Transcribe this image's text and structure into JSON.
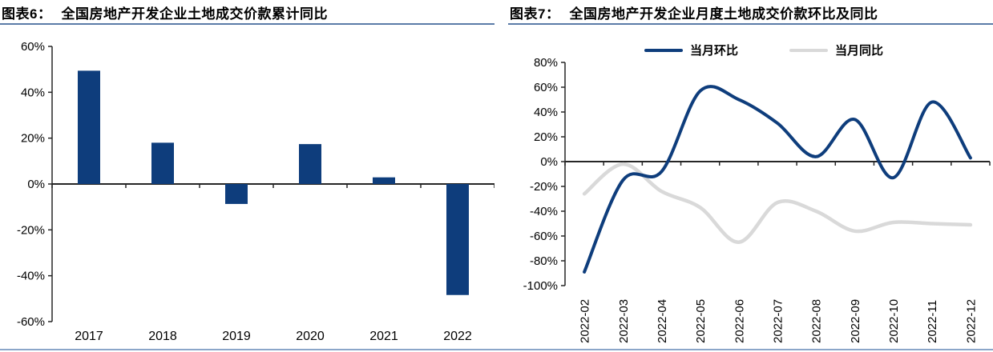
{
  "panels": {
    "left": {
      "label": "图表6：",
      "title": "全国房地产开发企业土地成交价款累计同比"
    },
    "right": {
      "label": "图表7：",
      "title": "全国房地产开发企业月度土地成交价款环比及同比"
    }
  },
  "colors": {
    "navy": "#0e3d7c",
    "gray_line": "#d9d9d9",
    "title_underline": "#5b7ca8",
    "bottom_rule": "#8ba6c9",
    "axis": "#262626",
    "text": "#000000"
  },
  "chart_data": [
    {
      "type": "bar",
      "title": "全国房地产开发企业土地成交价款累计同比",
      "categories": [
        "2017",
        "2018",
        "2019",
        "2020",
        "2021",
        "2022"
      ],
      "values": [
        49.4,
        18.0,
        -8.7,
        17.4,
        2.9,
        -48.4
      ],
      "unit": "percent",
      "ylim": [
        -60,
        60
      ],
      "ytick_values": [
        60,
        40,
        20,
        0,
        -20,
        -40,
        -60
      ],
      "bar_color": "#0e3d7c",
      "grid": false,
      "legend": null
    },
    {
      "type": "line",
      "title": "全国房地产开发企业月度土地成交价款环比及同比",
      "categories": [
        "2022-02",
        "2022-03",
        "2022-04",
        "2022-05",
        "2022-06",
        "2022-07",
        "2022-08",
        "2022-09",
        "2022-10",
        "2022-11",
        "2022-12"
      ],
      "series": [
        {
          "name": "当月环比",
          "color": "#0e3d7c",
          "values": [
            -89,
            -15,
            -8,
            57,
            50,
            31,
            4,
            34,
            -13,
            48,
            3
          ]
        },
        {
          "name": "当月同比",
          "color": "#d9d9d9",
          "values": [
            -26,
            -2,
            -24,
            -37,
            -65,
            -33,
            -40,
            -56,
            -49,
            -50,
            -51
          ]
        }
      ],
      "unit": "percent",
      "ylim": [
        -100,
        80
      ],
      "ytick_values": [
        80,
        60,
        40,
        20,
        0,
        -20,
        -40,
        -60,
        -80,
        -100
      ],
      "legend_position": "top",
      "line_style": "smooth",
      "grid": false
    }
  ]
}
